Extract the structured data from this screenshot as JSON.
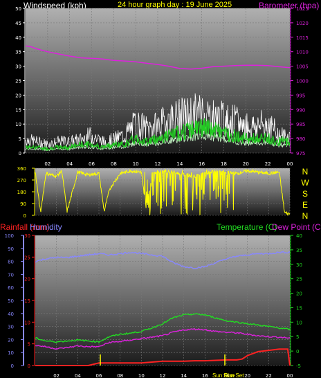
{
  "header": {
    "title_windspeed": "Windspeed (kph)",
    "title_graph": "24 hour graph day : 19 June 2025",
    "title_barometer": "Barometer (hpa)"
  },
  "direction_panel": {
    "letters": [
      "N",
      "W",
      "S",
      "E",
      "N"
    ]
  },
  "bottom_header": {
    "rainfall": "Rainfall (mm)",
    "humidity": "Humidity",
    "temperature": "Temperature (C)",
    "dewpoint": "Dew Point (C)"
  },
  "markers": {
    "sunrise": "Sun Rise",
    "sunset": "Sun Set"
  },
  "colors": {
    "windspeed_title": "#ffffff",
    "graph_title": "#ffff00",
    "barometer": "#dd22dd",
    "rainfall": "#ff2222",
    "humidity": "#8888ff",
    "temperature": "#22dd22",
    "dewpoint": "#dd22dd",
    "direction": "#ffff00",
    "gust": "#ffffff",
    "wind": "#22cc22",
    "wind_avg": "#ccffcc"
  },
  "chart_data": [
    {
      "type": "line",
      "name": "wind_barometer",
      "x_ticks": [
        "02",
        "04",
        "06",
        "08",
        "10",
        "12",
        "14",
        "16",
        "18",
        "20",
        "22",
        "00"
      ],
      "windspeed_ylim": [
        0,
        50
      ],
      "windspeed_ticks": [
        "50",
        "45",
        "40",
        "35",
        "30",
        "25",
        "20",
        "15",
        "10",
        "5",
        "0"
      ],
      "barometer_ylim": [
        975,
        1025
      ],
      "barometer_ticks": [
        "1025",
        "1020",
        "1015",
        "1010",
        "1005",
        "1000",
        "995",
        "990",
        "985",
        "980",
        "975"
      ],
      "barometer": {
        "hours": [
          0,
          0.5,
          1,
          2,
          3,
          4,
          5,
          6,
          7,
          8,
          9,
          10,
          11,
          12,
          13,
          14,
          15,
          16,
          17,
          18,
          19,
          20,
          21,
          22,
          23,
          24
        ],
        "values": [
          1012,
          1011.7,
          1011,
          1010,
          1009.2,
          1008.5,
          1007.9,
          1007.7,
          1007.5,
          1007,
          1006.8,
          1006.5,
          1006,
          1005.6,
          1005,
          1004.2,
          1004,
          1004.3,
          1004.8,
          1005,
          1005.2,
          1005.3,
          1005.3,
          1005.2,
          1004.8,
          1004.5
        ]
      },
      "wind_gust": {
        "hours": [
          0,
          1,
          2,
          3,
          4,
          5,
          6,
          7,
          8,
          9,
          10,
          11,
          12,
          13,
          14,
          15,
          16,
          17,
          18,
          19,
          20,
          21,
          22,
          23,
          24
        ],
        "values": [
          6,
          5,
          4,
          5,
          5,
          6,
          8,
          5,
          6,
          8,
          13,
          11,
          12,
          15,
          16,
          17,
          18,
          16,
          15,
          14,
          12,
          12,
          13,
          8,
          7
        ]
      },
      "wind_avg": {
        "hours": [
          0,
          1,
          2,
          3,
          4,
          5,
          6,
          7,
          8,
          9,
          10,
          11,
          12,
          13,
          14,
          15,
          16,
          17,
          18,
          19,
          20,
          21,
          22,
          23,
          24
        ],
        "values": [
          2,
          2,
          1.5,
          2,
          2,
          3,
          3,
          2,
          3,
          3,
          5,
          4,
          5,
          6,
          7,
          8,
          9,
          8,
          7,
          6,
          5,
          5,
          5,
          4,
          4
        ]
      }
    },
    {
      "type": "line",
      "name": "wind_direction",
      "ylim": [
        0,
        360
      ],
      "y_ticks": [
        "360",
        "270",
        "180",
        "90",
        "0"
      ],
      "direction": {
        "hours": [
          0,
          0.5,
          1,
          2,
          2.5,
          3,
          4,
          5,
          6,
          6.5,
          7,
          8,
          9,
          10,
          10.5,
          11,
          12,
          13,
          14,
          15,
          16,
          17,
          18,
          19,
          20,
          21,
          22,
          23,
          23.5,
          24
        ],
        "values": [
          330,
          20,
          320,
          300,
          340,
          30,
          330,
          310,
          320,
          30,
          200,
          320,
          340,
          330,
          20,
          330,
          340,
          330,
          310,
          300,
          320,
          340,
          330,
          320,
          340,
          330,
          320,
          330,
          20,
          10
        ]
      }
    },
    {
      "type": "line",
      "name": "temp_humidity_rain",
      "x_ticks": [
        "02",
        "04",
        "06",
        "08",
        "10",
        "12",
        "14",
        "16",
        "18",
        "20",
        "22",
        "00"
      ],
      "humidity_ylim": [
        0,
        100
      ],
      "humidity_ticks": [
        "100",
        "90",
        "80",
        "70",
        "60",
        "50",
        "40",
        "30",
        "20",
        "10",
        "0"
      ],
      "rainfall_ylim": [
        0,
        30
      ],
      "rainfall_ticks": [
        "30",
        "25",
        "20",
        "15",
        "10",
        "5",
        "0"
      ],
      "temperature_ylim": [
        -5,
        40
      ],
      "temperature_ticks": [
        "40",
        "35",
        "30",
        "25",
        "20",
        "15",
        "10",
        "5",
        "0",
        "-5"
      ],
      "humidity": {
        "hours": [
          0,
          1,
          2,
          3,
          4,
          5,
          6,
          7,
          8,
          9,
          10,
          11,
          12,
          13,
          14,
          15,
          16,
          17,
          18,
          19,
          20,
          21,
          22,
          23,
          24
        ],
        "values": [
          80,
          82,
          83,
          83,
          84,
          85,
          86,
          85,
          86,
          87,
          86,
          85,
          84,
          79,
          76,
          75,
          76,
          79,
          82,
          84,
          85,
          86,
          86,
          87,
          87
        ]
      },
      "temperature": {
        "hours": [
          0,
          1,
          2,
          3,
          4,
          5,
          6,
          7,
          8,
          9,
          10,
          11,
          12,
          13,
          14,
          15,
          16,
          17,
          18,
          19,
          20,
          21,
          22,
          23,
          24
        ],
        "values": [
          4.5,
          3.5,
          3.2,
          3.5,
          3.8,
          3.5,
          3.2,
          5,
          5.8,
          6.2,
          6.8,
          8,
          9.5,
          11.5,
          12.5,
          12.8,
          12.5,
          11.5,
          10.5,
          10,
          9.5,
          9,
          8.5,
          8,
          7.5
        ]
      },
      "dewpoint": {
        "hours": [
          0,
          1,
          2,
          3,
          4,
          5,
          6,
          7,
          8,
          9,
          10,
          11,
          12,
          13,
          14,
          15,
          16,
          17,
          18,
          19,
          20,
          21,
          22,
          23,
          24
        ],
        "values": [
          2,
          1.5,
          0.8,
          1.2,
          1.8,
          1.5,
          1.5,
          3,
          3.3,
          3.8,
          4.3,
          4.8,
          5.3,
          6.5,
          7.3,
          7.6,
          7.4,
          6.8,
          6.5,
          6.3,
          5.8,
          5.3,
          5,
          4.8,
          4.5
        ]
      },
      "rainfall": {
        "hours": [
          0,
          5,
          5.5,
          6,
          10,
          11,
          12,
          13,
          14,
          15,
          16,
          17,
          18,
          19,
          19.5,
          20,
          21,
          22,
          23,
          23.8,
          24
        ],
        "values": [
          0,
          0,
          0.3,
          0.6,
          0.6,
          0.8,
          1,
          1,
          1,
          1.1,
          1.1,
          1.2,
          1.3,
          1.3,
          1.5,
          2.3,
          3.2,
          3.5,
          3.8,
          3.8,
          0
        ]
      }
    }
  ]
}
